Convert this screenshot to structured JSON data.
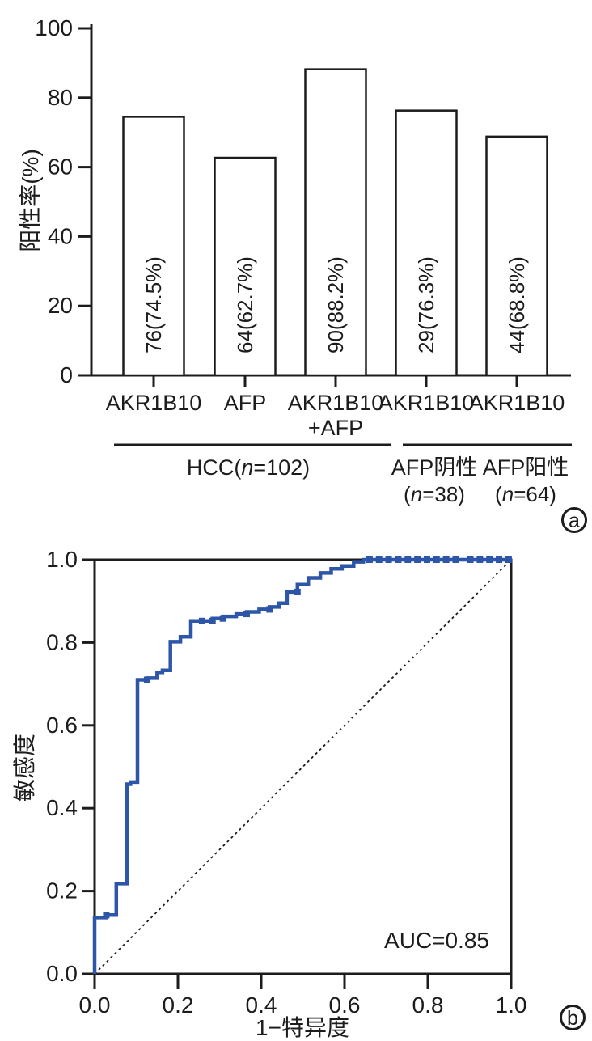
{
  "figure": {
    "panel_a_label": "a",
    "panel_b_label": "b"
  },
  "chart_data": [
    {
      "type": "bar",
      "title": "",
      "xlabel": "",
      "ylabel": "阳性率(%)",
      "ylim": [
        0,
        100
      ],
      "yticks": [
        0,
        20,
        40,
        60,
        80,
        100
      ],
      "categories": [
        "AKR1B10",
        "AFP",
        "AKR1B10\n+AFP",
        "AKR1B10",
        "AKR1B10"
      ],
      "values": [
        74.5,
        62.7,
        88.2,
        76.3,
        68.8
      ],
      "bar_labels": [
        "76(74.5%)",
        "64(62.7%)",
        "90(88.2%)",
        "29(76.3%)",
        "44(68.8%)"
      ],
      "group_lines": [
        {
          "from_bar": 0,
          "to_bar": 2
        },
        {
          "from_bar": 3,
          "to_bar": 4
        }
      ],
      "group_labels": [
        {
          "text": "HCC(n=102)",
          "sub": ""
        },
        {
          "text": "AFP阴性",
          "sub": "(n=38)"
        },
        {
          "text": "AFP阳性",
          "sub": "(n=64)"
        }
      ],
      "bar_fill": "#ffffff",
      "line_color": "#1c1c1c",
      "grid": false
    },
    {
      "type": "line",
      "title": "",
      "xlabel": "1−特异度",
      "ylabel": "敏感度",
      "xlim": [
        0.0,
        1.0
      ],
      "ylim": [
        0.0,
        1.0
      ],
      "xticks": [
        "0.0",
        "0.2",
        "0.4",
        "0.6",
        "0.8",
        "1.0"
      ],
      "yticks": [
        "0.0",
        "0.2",
        "0.4",
        "0.6",
        "0.8",
        "1.0"
      ],
      "annotation": "AUC=0.85",
      "diagonal_reference": true,
      "grid": false,
      "series": [
        {
          "name": "ROC curve",
          "color": "#2e56a8",
          "points": [
            [
              0.0,
              0.0
            ],
            [
              0.0,
              0.136
            ],
            [
              0.028,
              0.136
            ],
            [
              0.028,
              0.142
            ],
            [
              0.052,
              0.142
            ],
            [
              0.052,
              0.218
            ],
            [
              0.075,
              0.218
            ],
            [
              0.078,
              0.218
            ],
            [
              0.078,
              0.458
            ],
            [
              0.086,
              0.458
            ],
            [
              0.086,
              0.463
            ],
            [
              0.103,
              0.463
            ],
            [
              0.103,
              0.71
            ],
            [
              0.126,
              0.71
            ],
            [
              0.126,
              0.714
            ],
            [
              0.15,
              0.714
            ],
            [
              0.15,
              0.728
            ],
            [
              0.163,
              0.728
            ],
            [
              0.163,
              0.733
            ],
            [
              0.182,
              0.733
            ],
            [
              0.182,
              0.802
            ],
            [
              0.206,
              0.802
            ],
            [
              0.206,
              0.814
            ],
            [
              0.231,
              0.814
            ],
            [
              0.231,
              0.852
            ],
            [
              0.258,
              0.852
            ],
            [
              0.283,
              0.852
            ],
            [
              0.283,
              0.858
            ],
            [
              0.308,
              0.858
            ],
            [
              0.308,
              0.863
            ],
            [
              0.34,
              0.863
            ],
            [
              0.34,
              0.869
            ],
            [
              0.365,
              0.869
            ],
            [
              0.365,
              0.874
            ],
            [
              0.395,
              0.874
            ],
            [
              0.395,
              0.88
            ],
            [
              0.42,
              0.88
            ],
            [
              0.42,
              0.886
            ],
            [
              0.443,
              0.886
            ],
            [
              0.443,
              0.895
            ],
            [
              0.462,
              0.895
            ],
            [
              0.462,
              0.922
            ],
            [
              0.487,
              0.922
            ],
            [
              0.487,
              0.94
            ],
            [
              0.513,
              0.94
            ],
            [
              0.513,
              0.956
            ],
            [
              0.542,
              0.956
            ],
            [
              0.542,
              0.968
            ],
            [
              0.568,
              0.968
            ],
            [
              0.568,
              0.978
            ],
            [
              0.594,
              0.978
            ],
            [
              0.594,
              0.985
            ],
            [
              0.622,
              0.985
            ],
            [
              0.622,
              0.995
            ],
            [
              0.645,
              0.995
            ],
            [
              0.645,
              1.0
            ],
            [
              1.0,
              1.0
            ]
          ],
          "markers": [
            [
              0.028,
              0.142
            ],
            [
              0.126,
              0.71
            ],
            [
              0.258,
              0.852
            ],
            [
              0.283,
              0.852
            ],
            [
              0.308,
              0.858
            ],
            [
              0.365,
              0.869
            ],
            [
              0.42,
              0.88
            ],
            [
              0.487,
              0.922
            ],
            [
              0.66,
              1.0
            ],
            [
              0.683,
              1.0
            ],
            [
              0.706,
              1.0
            ],
            [
              0.729,
              1.0
            ],
            [
              0.752,
              1.0
            ],
            [
              0.775,
              1.0
            ],
            [
              0.798,
              1.0
            ],
            [
              0.821,
              1.0
            ],
            [
              0.844,
              1.0
            ],
            [
              0.867,
              1.0
            ],
            [
              0.902,
              1.0
            ],
            [
              0.925,
              1.0
            ],
            [
              0.948,
              1.0
            ],
            [
              0.971,
              1.0
            ],
            [
              0.994,
              1.0
            ]
          ]
        }
      ]
    }
  ]
}
